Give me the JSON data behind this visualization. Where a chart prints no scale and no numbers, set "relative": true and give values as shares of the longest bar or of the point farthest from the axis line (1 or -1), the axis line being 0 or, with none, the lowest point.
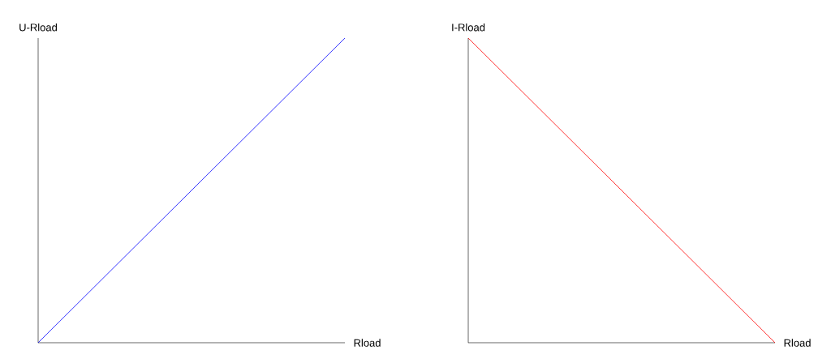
{
  "chart_data": [
    {
      "type": "line",
      "xlabel": "Rload",
      "ylabel": "U-Rload",
      "categories": [
        null,
        null
      ],
      "relative": true,
      "series": [
        {
          "color": "#0000ff",
          "values": [
            0,
            1
          ]
        }
      ]
    },
    {
      "type": "line",
      "xlabel": "Rload",
      "ylabel": "I-Rload",
      "categories": [
        null,
        null
      ],
      "relative": true,
      "series": [
        {
          "color": "#ff0000",
          "values": [
            1,
            0
          ]
        }
      ]
    }
  ]
}
